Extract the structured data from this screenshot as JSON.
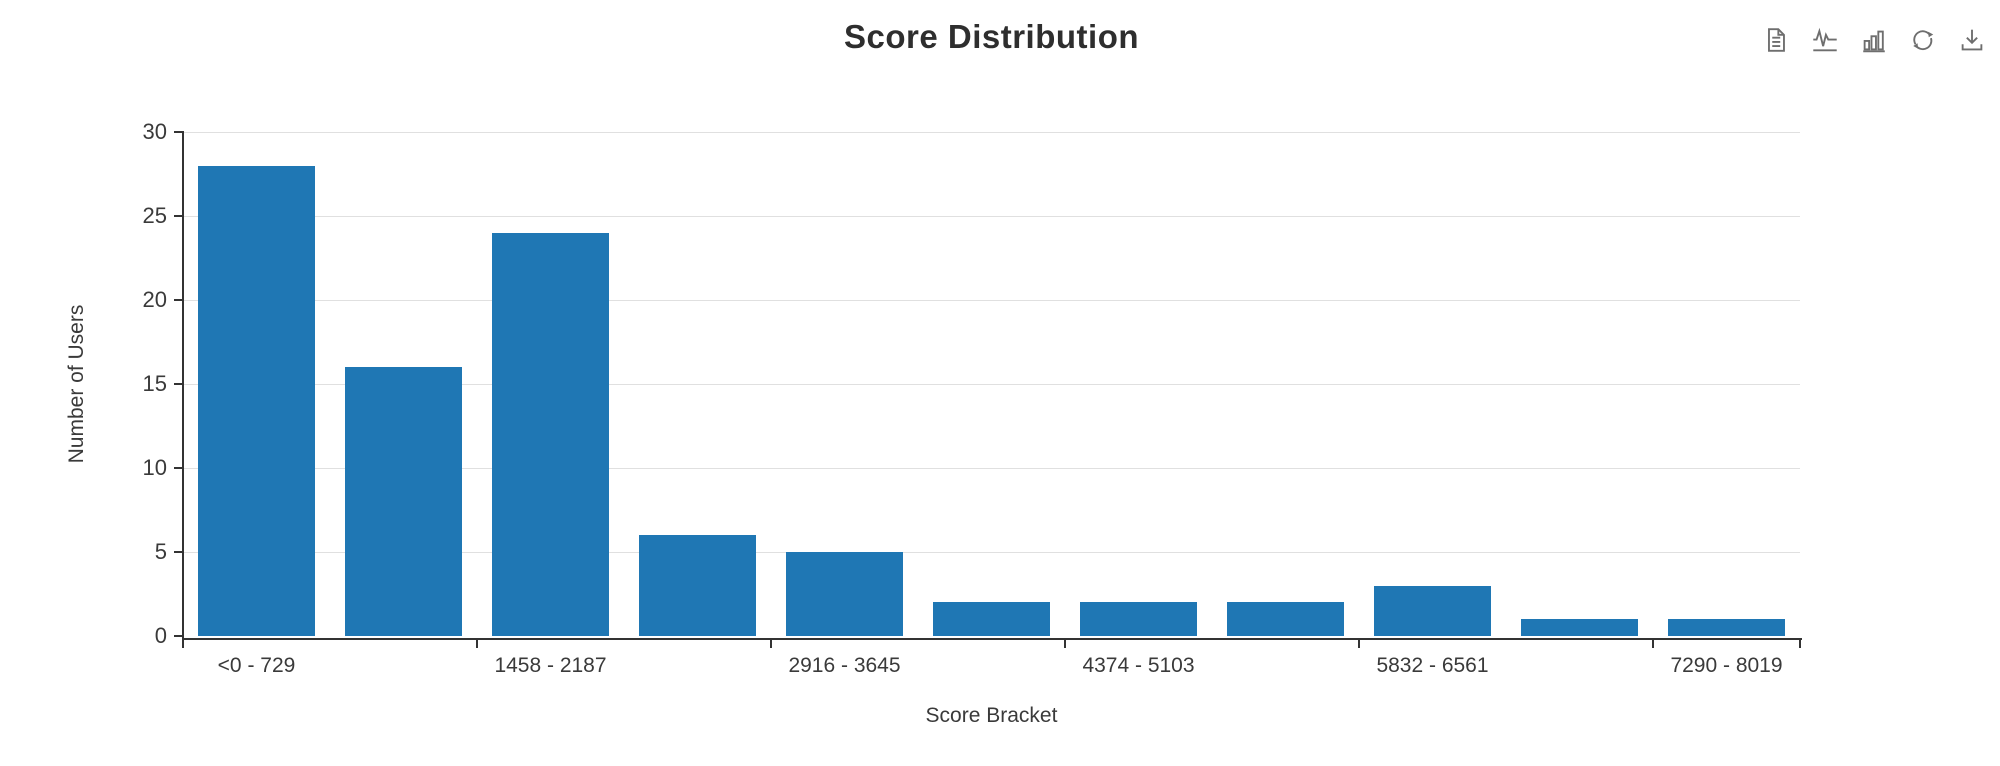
{
  "chart_data": {
    "type": "bar",
    "title": "Score Distribution",
    "xlabel": "Score Bracket",
    "ylabel": "Number of Users",
    "values": [
      28,
      16,
      24,
      6,
      5,
      2,
      2,
      2,
      3,
      1,
      1
    ],
    "x_tick_labels": [
      "<0 - 729",
      "1458 - 2187",
      "2916 - 3645",
      "4374 - 5103",
      "5832 - 6561",
      "7290 - 8019"
    ],
    "x_label_every": 2,
    "y_ticks": [
      0,
      5,
      10,
      15,
      20,
      25,
      30
    ],
    "ylim": [
      0,
      30
    ],
    "grid": true,
    "legend": false,
    "bar_color": "#1f77b4"
  },
  "toolbox": {
    "icons": [
      "data-view-icon",
      "line-chart-icon",
      "bar-chart-icon",
      "restore-icon",
      "download-icon"
    ]
  },
  "colors": {
    "bar": "#1f77b4",
    "axis": "#333333",
    "grid": "#e0e0e0",
    "icon": "#6e6e6e",
    "text": "#3a3a3a"
  }
}
